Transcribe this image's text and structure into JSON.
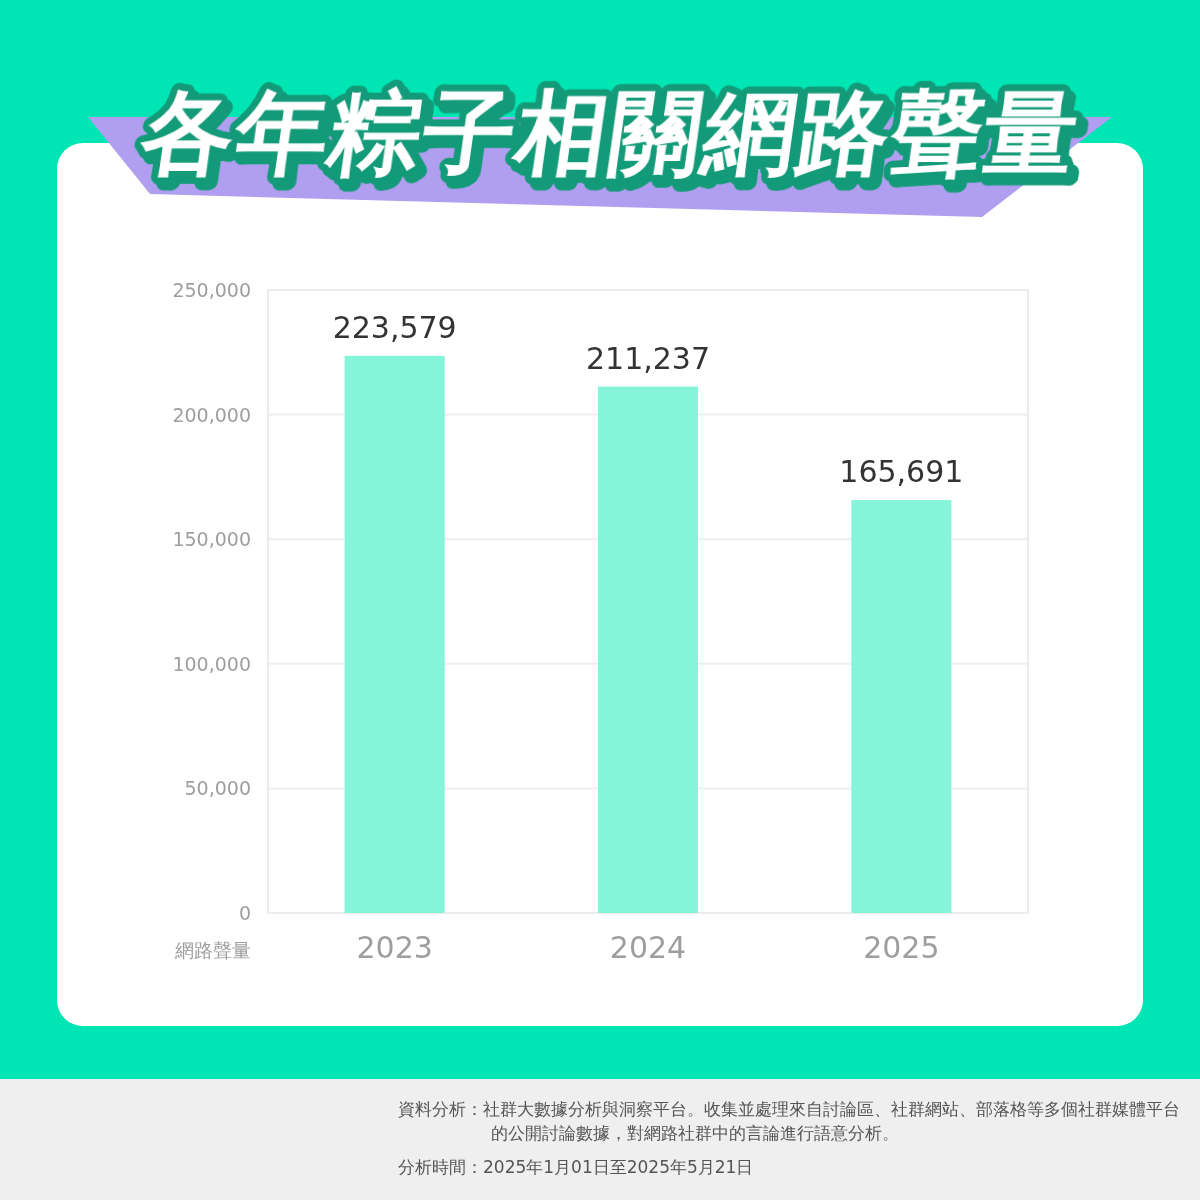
{
  "chart_data": {
    "type": "bar",
    "title": "各年粽子相關網路聲量",
    "ylabel": "網路聲量",
    "categories": [
      "2023",
      "2024",
      "2025"
    ],
    "values": [
      223579,
      211237,
      165691
    ],
    "color": "#85f4d9",
    "value_labels": [
      "223,579",
      "211,237",
      "165,691"
    ],
    "ylim": [
      0,
      250000
    ],
    "yticks": [
      0,
      {
        "value": 50000,
        "label": "50,000"
      },
      {
        "value": 100000,
        "label": "100,000"
      },
      {
        "value": 150000,
        "label": "150,000"
      },
      {
        "value": 200000,
        "label": "200,000"
      },
      {
        "value": 250000,
        "label": "250,000"
      }
    ],
    "grid": "y",
    "annotations": [
      "資料分析：社群大數據分析與洞察平台。收集並處理來自討論區、社群網站、部落格等多個社群媒體平台的公開討論數據，對網路社群中的言論進行語意分析。",
      "分析時間：2025年1月01日至2025年5月21日"
    ]
  }
}
